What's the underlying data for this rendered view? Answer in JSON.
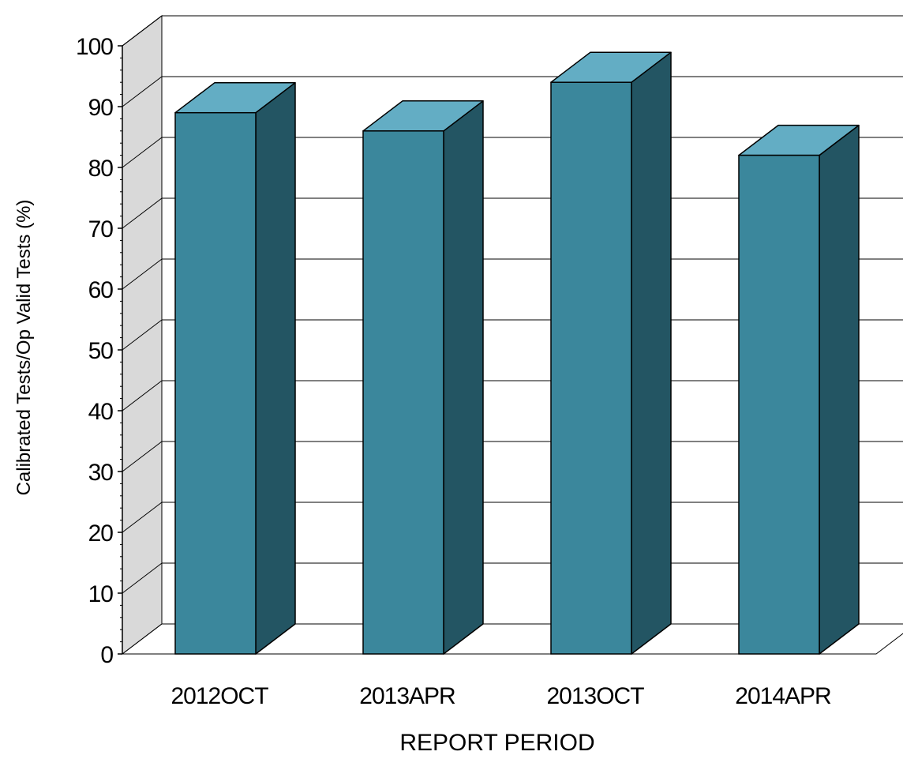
{
  "chart_data": {
    "type": "bar",
    "title": "",
    "categories": [
      "2012OCT",
      "2013APR",
      "2013OCT",
      "2014APR"
    ],
    "values": [
      89,
      86,
      94,
      82
    ],
    "xlabel": "REPORT PERIOD",
    "ylabel": "Calibrated Tests/Op Valid Tests (%)",
    "ylim": [
      0,
      100
    ],
    "yticks": [
      "0",
      "10",
      "20",
      "30",
      "40",
      "50",
      "60",
      "70",
      "80",
      "90",
      "100"
    ],
    "grid": true,
    "three_d": true,
    "colors": {
      "bar_front": "#3b879c",
      "bar_top": "#63adc4",
      "bar_side": "#235563",
      "wall": "#d9d9d9",
      "gridline": "#000000"
    }
  }
}
